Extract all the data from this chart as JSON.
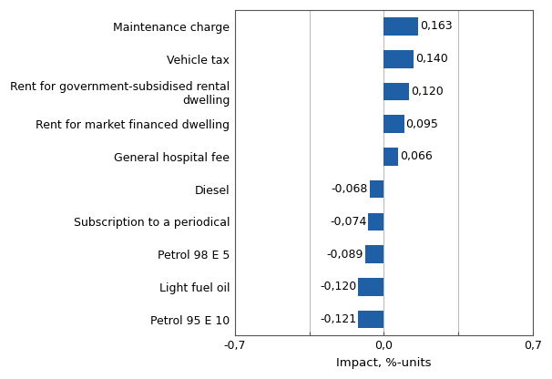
{
  "categories": [
    "Petrol 95 E 10",
    "Light fuel oil",
    "Petrol 98 E 5",
    "Subscription to a periodical",
    "Diesel",
    "General hospital fee",
    "Rent for market financed dwelling",
    "Rent for government-subsidised rental\ndwelling",
    "Vehicle tax",
    "Maintenance charge"
  ],
  "values": [
    -0.121,
    -0.12,
    -0.089,
    -0.074,
    -0.068,
    0.066,
    0.095,
    0.12,
    0.14,
    0.163
  ],
  "bar_color": "#1F5FA6",
  "xlim": [
    -0.7,
    0.7
  ],
  "xticks": [
    -0.7,
    -0.35,
    0.0,
    0.35,
    0.7
  ],
  "xtick_labels": [
    "-0,7",
    "",
    "0,0",
    "",
    "0,7"
  ],
  "xlabel": "Impact, %-units",
  "value_labels": [
    "-0,121",
    "-0,120",
    "-0,089",
    "-0,074",
    "-0,068",
    "0,066",
    "0,095",
    "0,120",
    "0,140",
    "0,163"
  ],
  "bar_height": 0.55,
  "grid_color": "#BBBBBB",
  "background_color": "#FFFFFF",
  "label_fontsize": 9,
  "tick_fontsize": 9,
  "xlabel_fontsize": 9.5
}
